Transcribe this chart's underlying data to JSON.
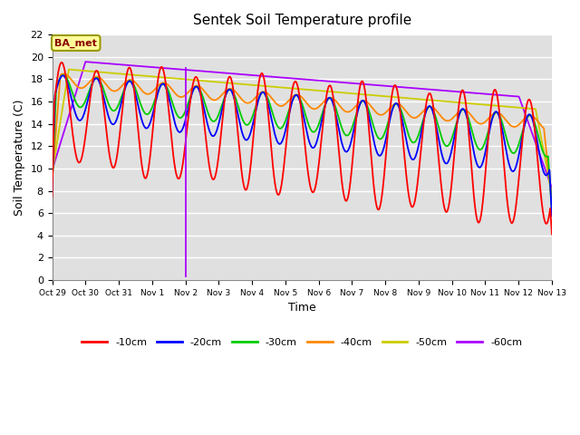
{
  "title": "Sentek Soil Temperature profile",
  "xlabel": "Time",
  "ylabel": "Soil Temperature (C)",
  "ylim": [
    0,
    22
  ],
  "yticks": [
    0,
    2,
    4,
    6,
    8,
    10,
    12,
    14,
    16,
    18,
    20,
    22
  ],
  "xlabels": [
    "Oct 29",
    "Oct 30",
    "Oct 31",
    "Nov 1",
    "Nov 2",
    "Nov 3",
    "Nov 4",
    "Nov 5",
    "Nov 6",
    "Nov 7",
    "Nov 8",
    "Nov 9",
    "Nov 10",
    "Nov 11",
    "Nov 12",
    "Nov 13"
  ],
  "annotation_text": "BA_met",
  "colors": {
    "-10cm": "#ff0000",
    "-20cm": "#0000ff",
    "-30cm": "#00cc00",
    "-40cm": "#ff8800",
    "-50cm": "#cccc00",
    "-60cm": "#aa00ff"
  },
  "bg_color": "#e0e0e0",
  "grid_color": "#ffffff",
  "legend_labels": [
    "-10cm",
    "-20cm",
    "-30cm",
    "-40cm",
    "-50cm",
    "-60cm"
  ],
  "n_days": 15,
  "vline_day": 4.0
}
